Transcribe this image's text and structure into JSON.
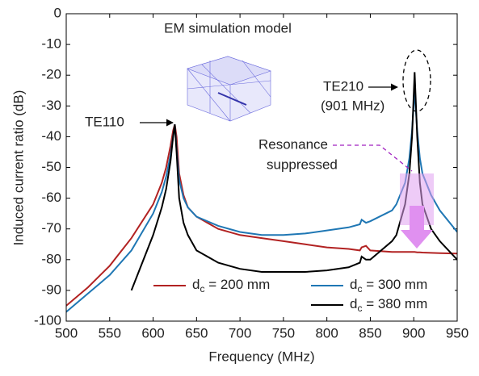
{
  "chart_data": {
    "type": "line",
    "xlabel": "Frequency (MHz)",
    "ylabel": "Induced current ratio (dB)",
    "x": [
      500,
      525,
      550,
      575,
      600,
      610,
      615,
      620,
      623,
      625,
      627,
      630,
      635,
      640,
      650,
      675,
      700,
      725,
      750,
      775,
      800,
      825,
      838,
      840,
      845,
      850,
      875,
      880,
      890,
      895,
      898,
      901,
      904,
      907,
      910,
      920,
      930,
      950
    ],
    "series": [
      {
        "name": "dc = 200 mm",
        "color": "#b22222",
        "values": [
          -95,
          -89,
          -82,
          -73,
          -62,
          -55,
          -50,
          -43,
          -38,
          -36,
          -40,
          -52,
          -59,
          -63,
          -66,
          -70,
          -72,
          -73,
          -74,
          -75,
          -76,
          -76.5,
          -77,
          -76,
          -75.5,
          -77,
          -77.5,
          -77.5,
          -77.5,
          -77.5,
          -77.5,
          -77.5,
          -77.6,
          -77.6,
          -77.7,
          -77.8,
          -77.9,
          -78
        ]
      },
      {
        "name": "dc = 300 mm",
        "color": "#1f77b4",
        "values": [
          -97,
          -91,
          -85,
          -77,
          -65,
          -58,
          -53,
          -46,
          -40,
          -36,
          -44,
          -54,
          -60,
          -63,
          -66,
          -69,
          -71,
          -72,
          -72,
          -71.5,
          -70.5,
          -69.5,
          -68.5,
          -67,
          -68,
          -67.5,
          -64,
          -62,
          -55,
          -47,
          -38,
          -25,
          -38,
          -47,
          -52,
          -59,
          -64,
          -71
        ]
      },
      {
        "name": "dc = 380 mm",
        "color": "#000000",
        "values": [
          null,
          null,
          null,
          -90,
          -72,
          -63,
          -57,
          -48,
          -40,
          -36,
          -45,
          -60,
          -68,
          -72,
          -77,
          -81,
          -83,
          -84,
          -84,
          -84,
          -83.5,
          -82.5,
          -81,
          -79,
          -80,
          -80,
          -74,
          -72,
          -62,
          -52,
          -40,
          -19,
          -40,
          -55,
          -62,
          -70,
          -74,
          -80
        ]
      }
    ],
    "xlim": [
      500,
      950
    ],
    "xticks": [
      500,
      550,
      600,
      650,
      700,
      750,
      800,
      850,
      900,
      950
    ],
    "ylim": [
      -100,
      0
    ],
    "yticks": [
      -100,
      -90,
      -80,
      -70,
      -60,
      -50,
      -40,
      -30,
      -20,
      -10,
      0
    ],
    "grid": false,
    "legend": "lower right",
    "annotations": {
      "model": "EM simulation model",
      "te110": "TE110",
      "te210": "TE210",
      "te210_freq": "(901 MHz)",
      "resonance": "Resonance",
      "suppressed": "suppressed"
    }
  }
}
